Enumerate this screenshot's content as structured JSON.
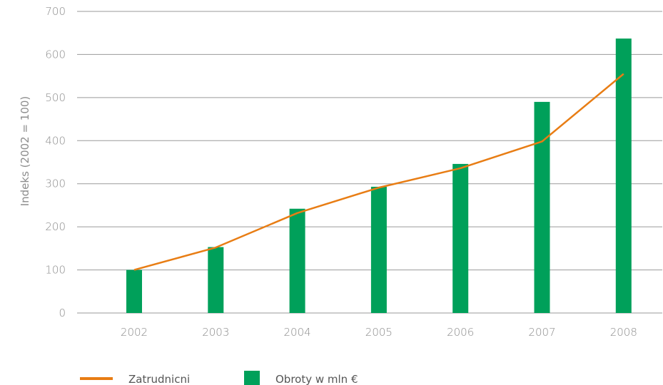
{
  "chart_data": {
    "type": "bar",
    "ylabel": "Indeks (2002 = 100)",
    "ylim": [
      0,
      700
    ],
    "yticks": [
      0,
      100,
      200,
      300,
      400,
      500,
      600,
      700
    ],
    "categories": [
      "2002",
      "2003",
      "2004",
      "2005",
      "2006",
      "2007",
      "2008"
    ],
    "grid": true,
    "legend": "bottom-left",
    "series": [
      {
        "name": "Obroty w mln €",
        "type": "bar",
        "color": "#00a05a",
        "values": [
          100,
          153,
          242,
          293,
          346,
          490,
          637
        ]
      },
      {
        "name": "Zatrudnicni",
        "type": "line",
        "color": "#e87d14",
        "values": [
          100,
          152,
          232,
          291,
          336,
          398,
          555
        ]
      }
    ]
  }
}
